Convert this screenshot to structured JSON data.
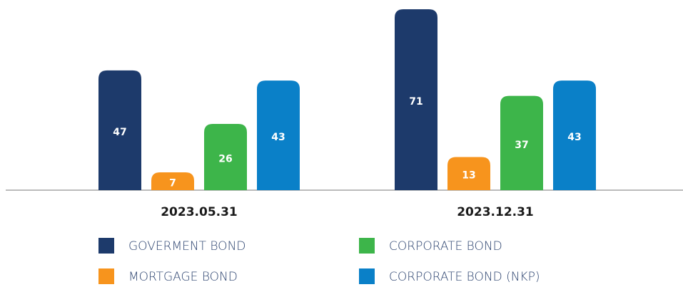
{
  "chart_data": {
    "type": "bar",
    "categories": [
      "2023.05.31",
      "2023.12.31"
    ],
    "series": [
      {
        "name": "GOVERMENT BOND",
        "color": "#1d3a6b",
        "values": [
          47,
          71
        ]
      },
      {
        "name": "MORTGAGE BOND",
        "color": "#f7941d",
        "values": [
          7,
          13
        ]
      },
      {
        "name": "CORPORATE BOND",
        "color": "#3db54a",
        "values": [
          26,
          37
        ]
      },
      {
        "name": "CORPORATE BOND (NKP)",
        "color": "#0a80c8",
        "values": [
          43,
          43
        ]
      }
    ]
  }
}
